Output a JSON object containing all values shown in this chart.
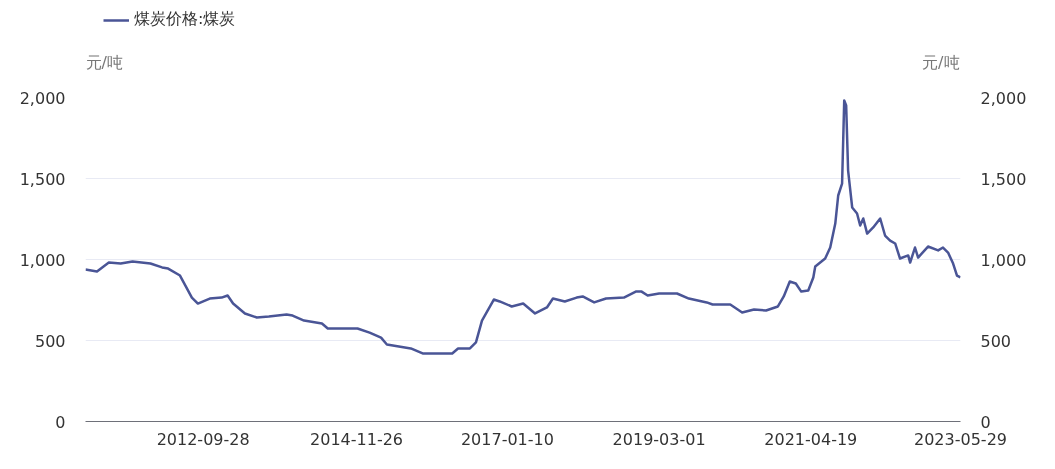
{
  "chart_data": {
    "type": "line",
    "ylabel": "元/吨",
    "y2label": "元/吨",
    "x": [
      "2011-02",
      "2011-04",
      "2011-06",
      "2011-08",
      "2011-10",
      "2012-01",
      "2012-03",
      "2012-04",
      "2012-06",
      "2012-08",
      "2012-09",
      "2012-11",
      "2013-01",
      "2013-02",
      "2013-03",
      "2013-05",
      "2013-07",
      "2013-09",
      "2013-12",
      "2014-01",
      "2014-03",
      "2014-06",
      "2014-07",
      "2014-12",
      "2015-02",
      "2015-04",
      "2015-05",
      "2015-09",
      "2015-11",
      "2016-04",
      "2016-05",
      "2016-07",
      "2016-08",
      "2016-09",
      "2016-11",
      "2016-12",
      "2017-02",
      "2017-04",
      "2017-06",
      "2017-08",
      "2017-09",
      "2017-11",
      "2018-01",
      "2018-02",
      "2018-04",
      "2018-06",
      "2018-09",
      "2018-11",
      "2018-12",
      "2019-01",
      "2019-03",
      "2019-06",
      "2019-08",
      "2019-11",
      "2019-12",
      "2020-03",
      "2020-05",
      "2020-07",
      "2020-09",
      "2020-11",
      "2020-12",
      "2021-01",
      "2021-02",
      "2021-03",
      "2021-04-06",
      "2021-05-02",
      "2021-05-12",
      "2021-07-02",
      "2021-07-28",
      "2021-08-23",
      "2021-09-07",
      "2021-09-27",
      "2021-10-08",
      "2021-10-18",
      "2021-10-28",
      "2021-11-18",
      "2021-12-13",
      "2021-12-29",
      "2022-01-14",
      "2022-02-03",
      "2022-03-06",
      "2022-04-11",
      "2022-05-06",
      "2022-06-01",
      "2022-06-27",
      "2022-07-22",
      "2022-09-02",
      "2022-09-12",
      "2022-10-07",
      "2022-10-23",
      "2022-12-13",
      "2023-02-03",
      "2023-02-28",
      "2023-03-26",
      "2023-04-21",
      "2023-05-11",
      "2023-05-29"
    ],
    "series": [
      {
        "name": "煤炭价格:煤炭",
        "color": "#4a5596",
        "values": [
          938,
          926,
          981,
          975,
          988,
          975,
          951,
          944,
          901,
          765,
          728,
          759,
          765,
          778,
          728,
          667,
          642,
          648,
          660,
          654,
          623,
          605,
          574,
          574,
          549,
          518,
          475,
          451,
          420,
          420,
          451,
          451,
          488,
          623,
          753,
          741,
          710,
          728,
          667,
          704,
          759,
          741,
          765,
          772,
          735,
          759,
          765,
          802,
          802,
          778,
          790,
          790,
          759,
          735,
          722,
          722,
          673,
          691,
          685,
          710,
          772,
          864,
          852,
          802,
          809,
          889,
          957,
          1006,
          1074,
          1222,
          1395,
          1469,
          1981,
          1951,
          1549,
          1321,
          1284,
          1210,
          1253,
          1160,
          1198,
          1253,
          1148,
          1117,
          1099,
          1006,
          1025,
          981,
          1074,
          1012,
          1080,
          1056,
          1074,
          1043,
          975,
          901,
          889
        ]
      }
    ],
    "xlim": [
      "2011-02",
      "2023-05-29"
    ],
    "xticks": [
      "2012-09-28",
      "2014-11-26",
      "2017-01-10",
      "2019-03-01",
      "2021-04-19",
      "2023-05-29"
    ],
    "ylim": [
      0,
      2000
    ],
    "yticks": [
      0,
      500,
      {
        "value": 1000,
        "label": "1,000"
      },
      {
        "value": 1500,
        "label": "1,500"
      },
      {
        "value": 2000,
        "label": "2,000"
      }
    ],
    "y2lim": [
      0,
      2000
    ],
    "y2ticks": [
      0,
      500,
      {
        "value": 1000,
        "label": "1,000"
      },
      {
        "value": 1500,
        "label": "1,500"
      },
      {
        "value": 2000,
        "label": "2,000"
      }
    ],
    "grid": "y",
    "legend": "top left",
    "marker": "none",
    "line_style": "solid"
  }
}
